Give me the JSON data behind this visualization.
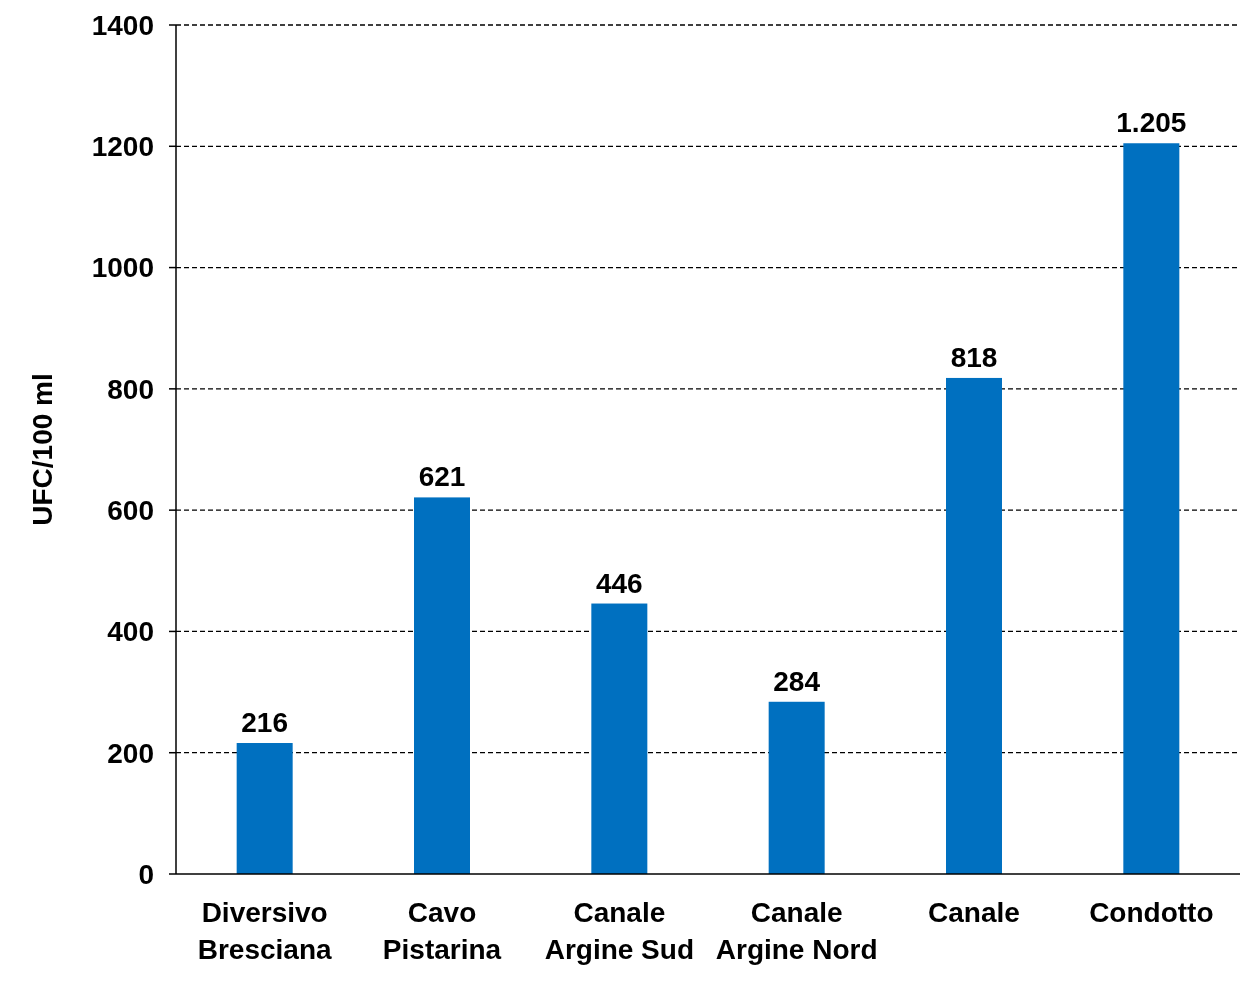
{
  "chart_data": {
    "type": "bar",
    "ylabel": "UFC/100 ml",
    "categories": [
      "Diversivo Bresciana",
      "Cavo Pistarina",
      "Canale Argine Sud",
      "Canale Argine Nord",
      "Canale",
      "Condotto"
    ],
    "values": [
      216,
      621,
      446,
      284,
      818,
      1205
    ],
    "value_labels": [
      "216",
      "621",
      "446",
      "284",
      "818",
      "1.205"
    ],
    "color": "#0070c0",
    "ylim": [
      0,
      1400
    ],
    "yticks": [
      0,
      200,
      400,
      600,
      800,
      1000,
      1200,
      1400
    ],
    "grid": "y"
  }
}
